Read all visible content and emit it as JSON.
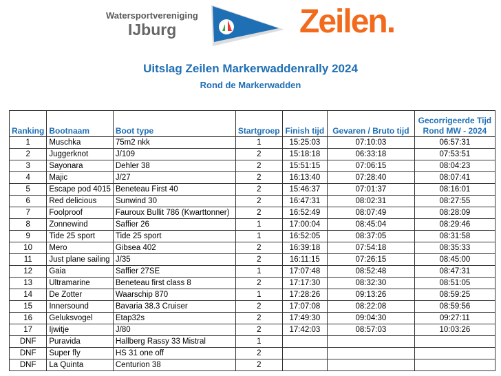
{
  "header": {
    "org_line1": "Watersportvereniging",
    "org_line2": "IJburg",
    "brand": "Zeilen.",
    "title": "Uitslag Zeilen Markerwaddenrally 2024",
    "subtitle": "Rond de Markerwadden"
  },
  "table": {
    "columns": [
      "Ranking",
      "Bootnaam",
      "Boot type",
      "Startgroep",
      "Finish tijd",
      "Gevaren / Bruto tijd",
      "Gecorrigeerde Tijd Rond MW - 2024"
    ],
    "rows": [
      [
        "1",
        "Muschka",
        "75m2 nkk",
        "1",
        "15:25:03",
        "07:10:03",
        "06:57:31"
      ],
      [
        "2",
        "Juggerknot",
        "J/109",
        "2",
        "15:18:18",
        "06:33:18",
        "07:53:51"
      ],
      [
        "3",
        "Sayonara",
        "Dehler 38",
        "2",
        "15:51:15",
        "07:06:15",
        "08:04:23"
      ],
      [
        "4",
        "Majic",
        "J/27",
        "2",
        "16:13:40",
        "07:28:40",
        "08:07:41"
      ],
      [
        "5",
        "Escape pod 4015",
        "Beneteau First 40",
        "2",
        "15:46:37",
        "07:01:37",
        "08:16:01"
      ],
      [
        "6",
        "Red delicious",
        "Sunwind 30",
        "2",
        "16:47:31",
        "08:02:31",
        "08:27:55"
      ],
      [
        "7",
        "Foolproof",
        "Fauroux Bullit 786 (Kwarttonner)",
        "2",
        "16:52:49",
        "08:07:49",
        "08:28:09"
      ],
      [
        "8",
        "Zonnewind",
        "Saffier 26",
        "1",
        "17:00:04",
        "08:45:04",
        "08:29:46"
      ],
      [
        "9",
        "Tide 25 sport",
        "Tide 25 sport",
        "1",
        "16:52:05",
        "08:37:05",
        "08:31:58"
      ],
      [
        "10",
        "Mero",
        "Gibsea 402",
        "2",
        "16:39:18",
        "07:54:18",
        "08:35:33"
      ],
      [
        "11",
        "Just plane sailing",
        "J/35",
        "2",
        "16:11:15",
        "07:26:15",
        "08:45:00"
      ],
      [
        "12",
        "Gaia",
        "Saffier 27SE",
        "1",
        "17:07:48",
        "08:52:48",
        "08:47:31"
      ],
      [
        "13",
        "Ultramarine",
        "Beneteau first class 8",
        "2",
        "17:17:30",
        "08:32:30",
        "08:51:05"
      ],
      [
        "14",
        "De Zotter",
        "Waarschip 870",
        "1",
        "17:28:26",
        "09:13:26",
        "08:59:25"
      ],
      [
        "15",
        "Innersound",
        "Bavaria 38.3 Cruiser",
        "2",
        "17:07:08",
        "08:22:08",
        "08:59:56"
      ],
      [
        "16",
        "Geluksvogel",
        "Etap32s",
        "2",
        "17:49:30",
        "09:04:30",
        "09:27:11"
      ],
      [
        "17",
        "Ijwitje",
        "J/80",
        "2",
        "17:42:03",
        "08:57:03",
        "10:03:26"
      ],
      [
        "DNF",
        "Puravida",
        "Hallberg Rassy 33 Mistral",
        "1",
        "",
        "",
        ""
      ],
      [
        "DNF",
        "Super fly",
        "HS 31 one off",
        "2",
        "",
        "",
        ""
      ],
      [
        "DNF",
        "La Quinta",
        "Centurion 38",
        "2",
        "",
        "",
        ""
      ]
    ]
  }
}
